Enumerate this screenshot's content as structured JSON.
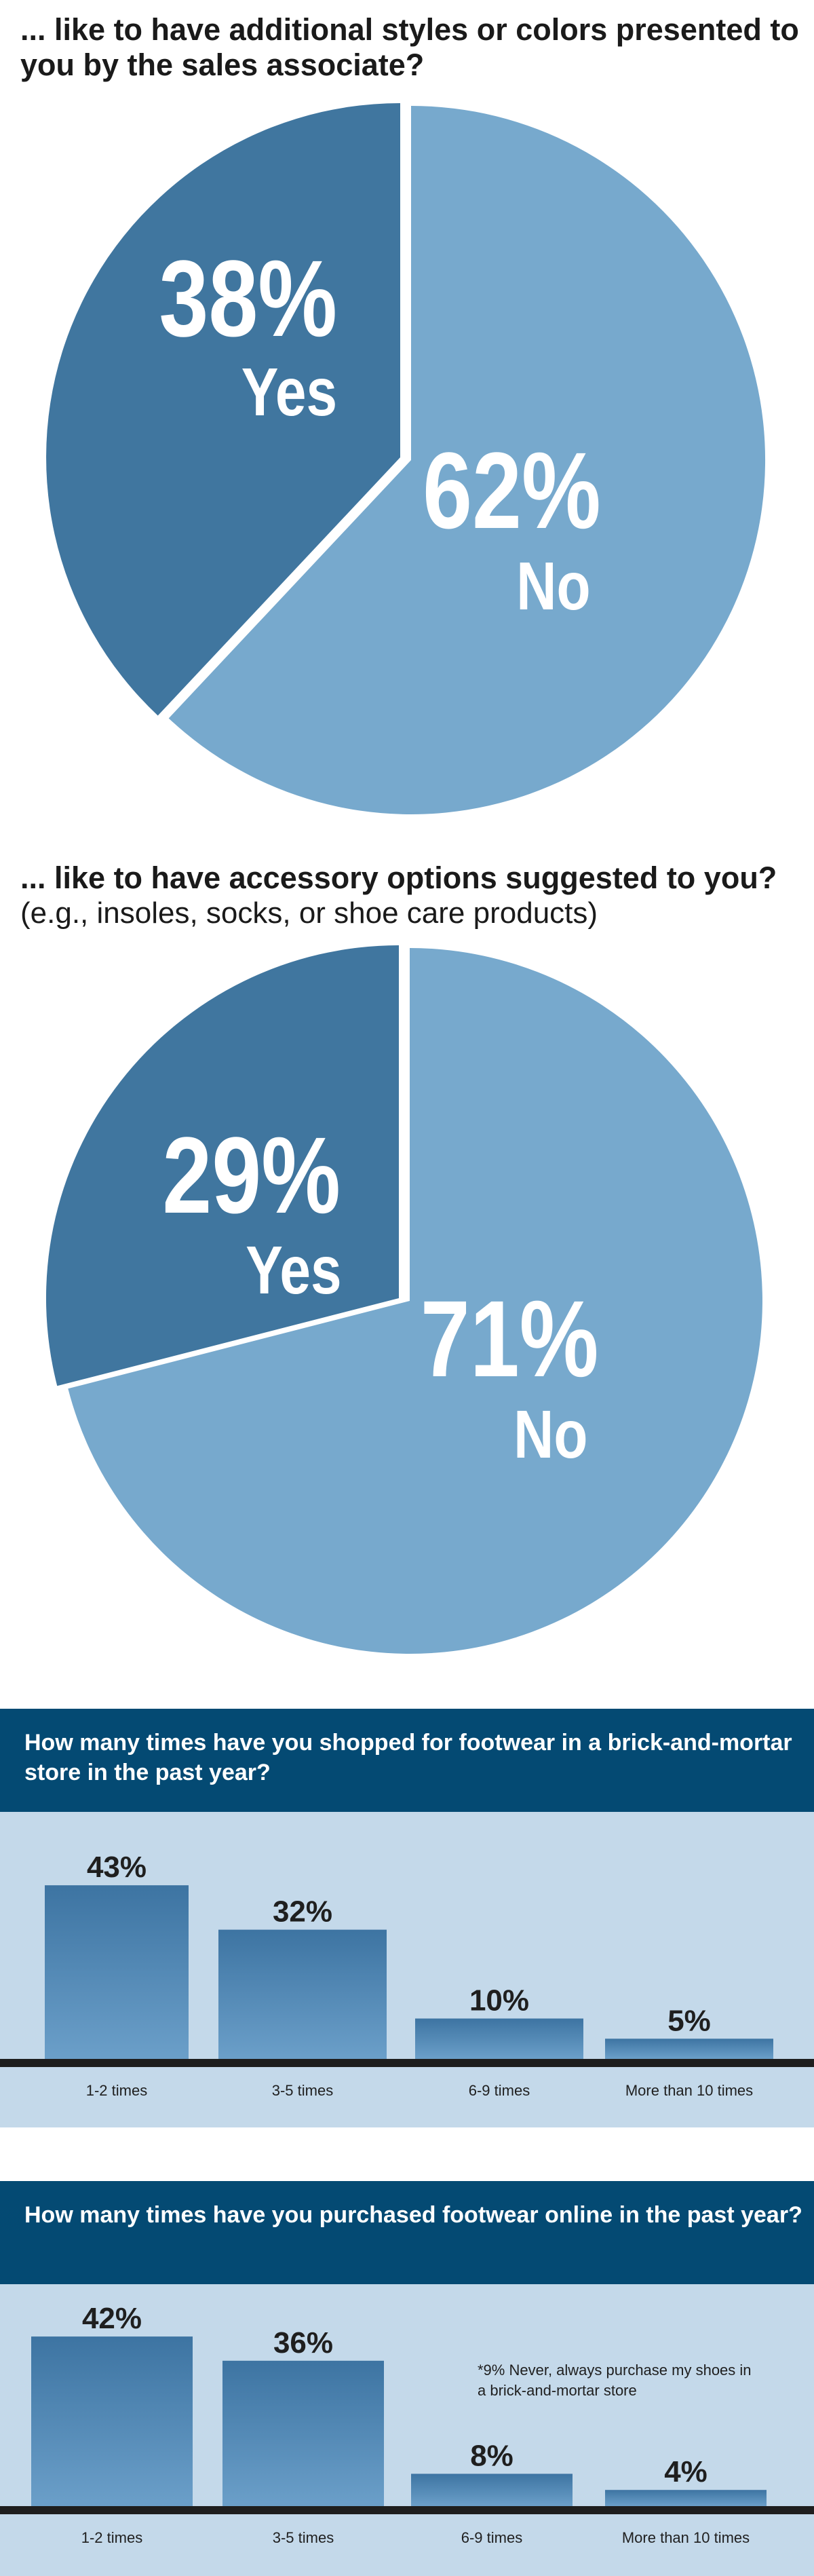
{
  "colors": {
    "pie_light": "#77a9cd",
    "pie_dark": "#40769f",
    "header_bg": "#044a73",
    "panel_bg": "#c4d9ea",
    "bar_top": "#3d74a2",
    "bar_bottom": "#6b9fc9",
    "baseline": "#1e1e1e"
  },
  "section1": {
    "title": "... like to have additional styles or colors presented to you by the sales associate?"
  },
  "section2": {
    "title": "... like to have accessory options suggested to you?",
    "subtitle": "(e.g., insoles, socks, or shoe care products)"
  },
  "section3": {
    "title": "How many times have you shopped for footwear in a brick-and-mortar store in the past year?"
  },
  "section4": {
    "title": "How many times have you purchased footwear online in the past year?",
    "note": "*9% Never, always purchase my shoes in a brick-and-mortar store"
  },
  "chart_data": [
    {
      "type": "pie",
      "labels": [
        "Yes",
        "No"
      ],
      "values": [
        38,
        62
      ],
      "value_labels": [
        "38%",
        "62%"
      ]
    },
    {
      "type": "pie",
      "labels": [
        "Yes",
        "No"
      ],
      "values": [
        29,
        71
      ],
      "value_labels": [
        "29%",
        "71%"
      ]
    },
    {
      "type": "bar",
      "categories": [
        "1-2 times",
        "3-5 times",
        "6-9 times",
        "More than 10 times"
      ],
      "values": [
        43,
        32,
        10,
        5
      ],
      "value_labels": [
        "43%",
        "32%",
        "10%",
        "5%"
      ]
    },
    {
      "type": "bar",
      "categories": [
        "1-2 times",
        "3-5 times",
        "6-9 times",
        "More than 10 times"
      ],
      "values": [
        42,
        36,
        8,
        4
      ],
      "value_labels": [
        "42%",
        "36%",
        "8%",
        "4%"
      ]
    }
  ]
}
